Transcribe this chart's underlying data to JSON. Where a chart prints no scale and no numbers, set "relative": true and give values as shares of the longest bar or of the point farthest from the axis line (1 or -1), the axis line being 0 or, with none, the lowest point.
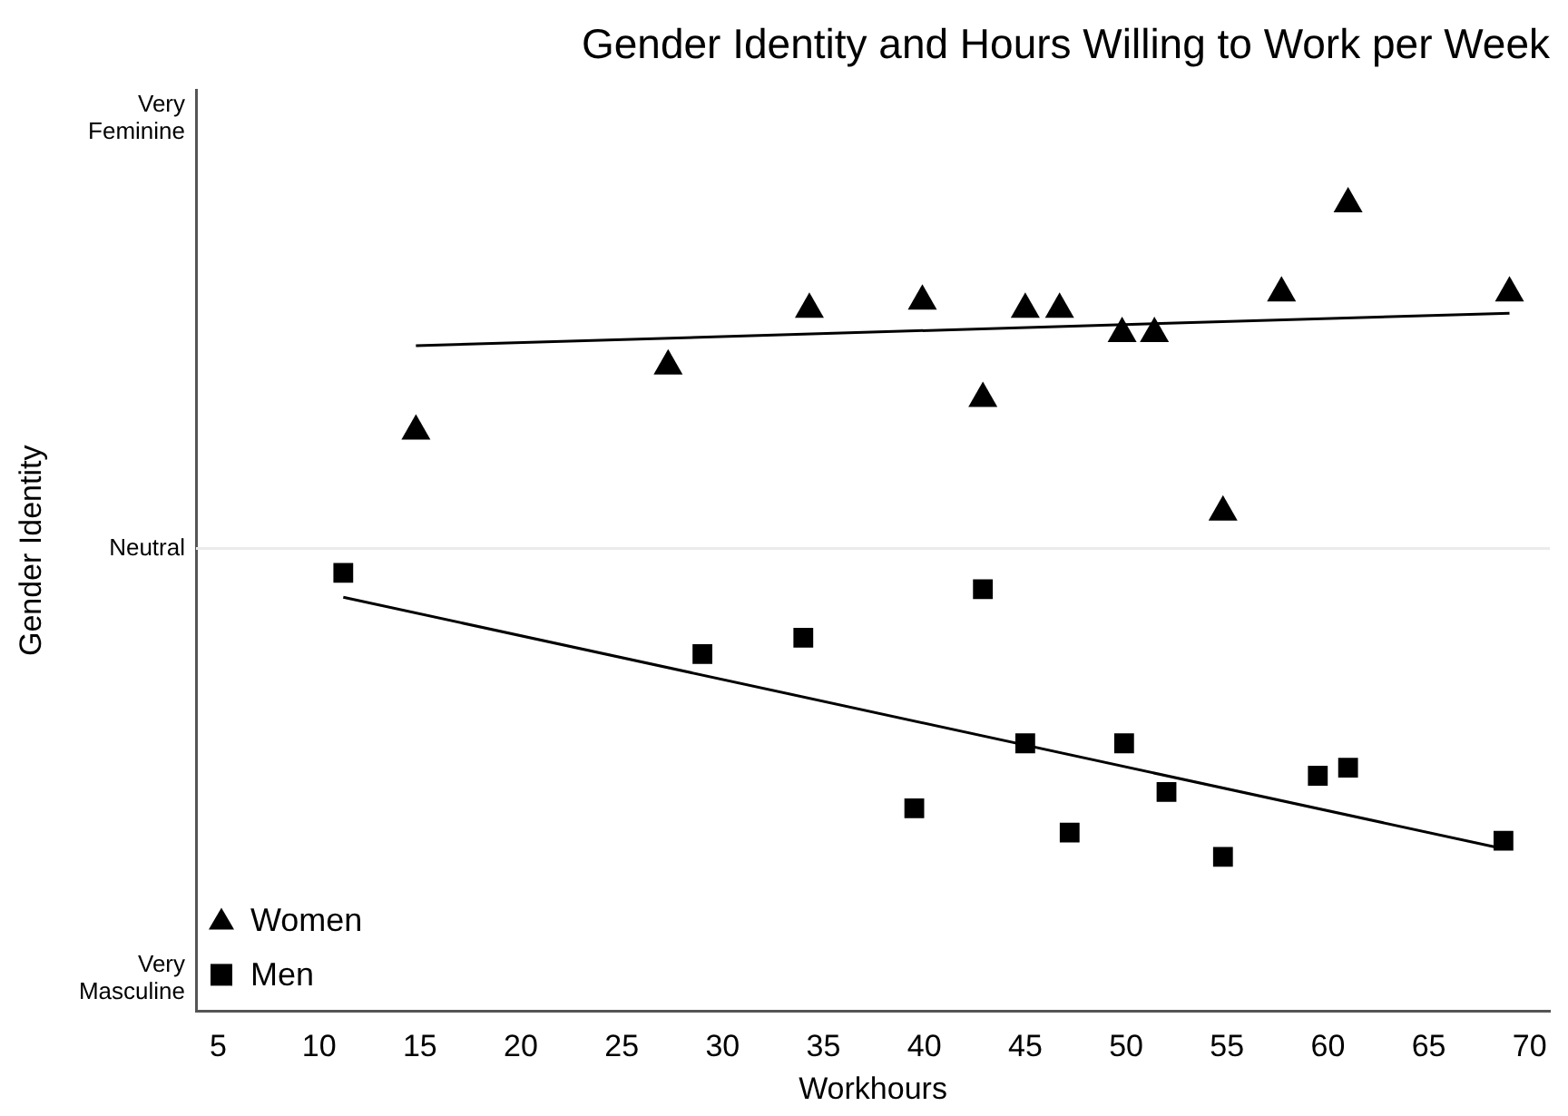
{
  "chart_data": {
    "type": "scatter",
    "title": "Gender Identity and Hours Willing to Work per Week",
    "xlabel": "Workhours",
    "ylabel": "Gender Identity",
    "xlim": [
      3.9,
      71
    ],
    "xticks": [
      5,
      10,
      15,
      20,
      25,
      30,
      35,
      40,
      45,
      50,
      55,
      60,
      65,
      70
    ],
    "relative": true,
    "annotations": [
      "Very Feminine",
      "Neutral",
      "Very Masculine"
    ],
    "ref_lines": [
      {
        "axis": "y",
        "value": 0.57,
        "color": "#ebebeb"
      }
    ],
    "legend": "bottom left",
    "series": [
      {
        "name": "Women",
        "color": "#000000",
        "marker": "triangle",
        "x": [
          14.8,
          27.3,
          34.3,
          39.9,
          42.9,
          45.0,
          46.7,
          49.8,
          51.4,
          54.8,
          57.7,
          61.0,
          69.0
        ],
        "values": [
          0.72,
          0.8,
          0.87,
          0.88,
          0.76,
          0.87,
          0.87,
          0.84,
          0.84,
          0.62,
          0.89,
          1,
          0.89
        ]
      },
      {
        "name": "Men",
        "color": "#000000",
        "marker": "square",
        "x": [
          11.2,
          29.0,
          34.0,
          39.5,
          42.9,
          45.0,
          47.2,
          49.9,
          52.0,
          54.8,
          59.5,
          61.0,
          68.7
        ],
        "values": [
          0.54,
          0.44,
          0.46,
          0.25,
          0.52,
          0.33,
          0.22,
          0.33,
          0.27,
          0.19,
          0.29,
          0.3,
          0.21
        ]
      },
      {
        "type": "line",
        "color": "#000000",
        "marker": "none",
        "line_style": "solid",
        "x": [
          14.8,
          69.0
        ],
        "values": [
          0.82,
          0.86
        ]
      },
      {
        "type": "line",
        "color": "#000000",
        "marker": "none",
        "line_style": "solid",
        "x": [
          11.2,
          68.7
        ],
        "values": [
          0.51,
          0.2
        ]
      }
    ]
  }
}
